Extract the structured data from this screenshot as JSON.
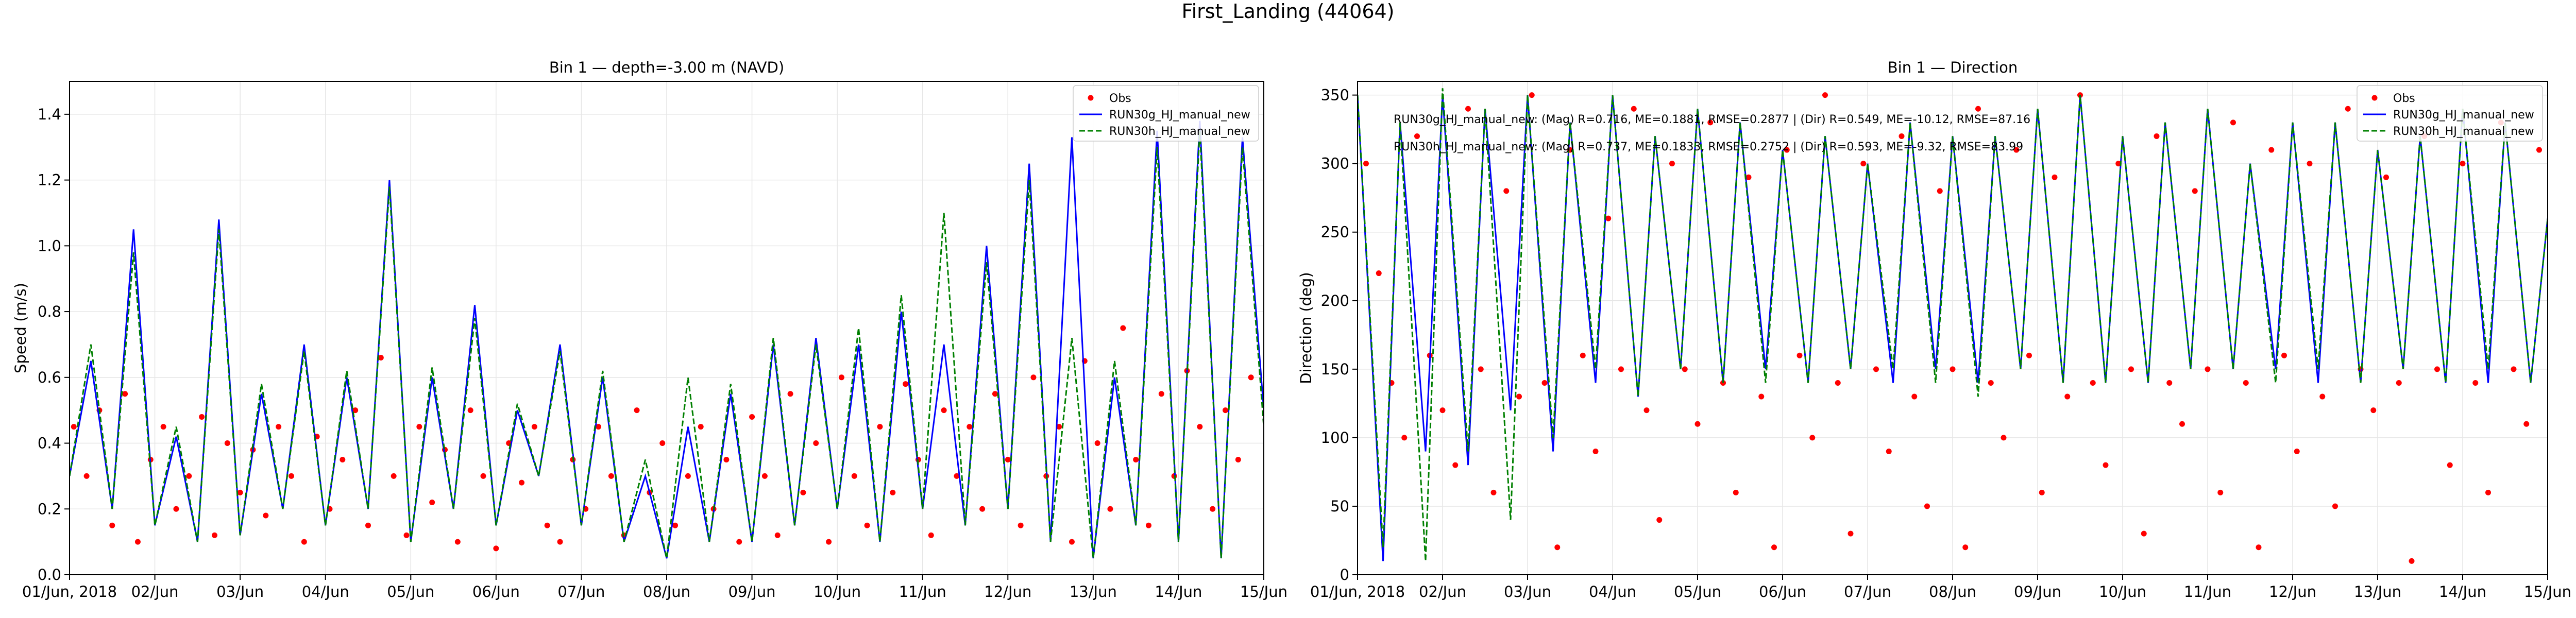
{
  "suptitle": "First_Landing (44064)",
  "chart_data": [
    {
      "type": "line",
      "title": "Bin 1 — depth=-3.00 m (NAVD)",
      "xlabel": "",
      "ylabel": "Speed (m/s)",
      "xlim": [
        0,
        14
      ],
      "ylim": [
        0,
        1.5
      ],
      "x_ticks": [
        0,
        1,
        2,
        3,
        4,
        5,
        6,
        7,
        8,
        9,
        10,
        11,
        12,
        13,
        14
      ],
      "x_tick_labels": [
        "01/Jun, 2018",
        "02/Jun",
        "03/Jun",
        "04/Jun",
        "05/Jun",
        "06/Jun",
        "07/Jun",
        "08/Jun",
        "09/Jun",
        "10/Jun",
        "11/Jun",
        "12/Jun",
        "13/Jun",
        "14/Jun",
        "15/Jun"
      ],
      "y_ticks": [
        0,
        0.2,
        0.4,
        0.6,
        0.8,
        1.0,
        1.2,
        1.4
      ],
      "y_tick_labels": [
        "0.0",
        "0.2",
        "0.4",
        "0.6",
        "0.8",
        "1.0",
        "1.2",
        "1.4"
      ],
      "grid": true,
      "legend_position": "upper right",
      "legend": [
        "Obs",
        "RUN30g_HJ_manual_new",
        "RUN30h_HJ_manual_new"
      ],
      "annotations": [],
      "series": [
        {
          "name": "Obs",
          "kind": "scatter",
          "color": "#ff0000",
          "x": [
            0.05,
            0.2,
            0.35,
            0.5,
            0.65,
            0.8,
            0.95,
            1.1,
            1.25,
            1.4,
            1.55,
            1.7,
            1.85,
            2.0,
            2.15,
            2.3,
            2.45,
            2.6,
            2.75,
            2.9,
            3.05,
            3.2,
            3.35,
            3.5,
            3.65,
            3.8,
            3.95,
            4.1,
            4.25,
            4.4,
            4.55,
            4.7,
            4.85,
            5.0,
            5.15,
            5.3,
            5.45,
            5.6,
            5.75,
            5.9,
            6.05,
            6.2,
            6.35,
            6.5,
            6.65,
            6.8,
            6.95,
            7.1,
            7.25,
            7.4,
            7.55,
            7.7,
            7.85,
            8.0,
            8.15,
            8.3,
            8.45,
            8.6,
            8.75,
            8.9,
            9.05,
            9.2,
            9.35,
            9.5,
            9.65,
            9.8,
            9.95,
            10.1,
            10.25,
            10.4,
            10.55,
            10.7,
            10.85,
            11.0,
            11.15,
            11.3,
            11.45,
            11.6,
            11.75,
            11.9,
            12.05,
            12.2,
            12.35,
            12.5,
            12.65,
            12.8,
            12.95,
            13.1,
            13.25,
            13.4,
            13.55,
            13.7,
            13.85
          ],
          "y": [
            0.45,
            0.3,
            0.5,
            0.15,
            0.55,
            0.1,
            0.35,
            0.45,
            0.2,
            0.3,
            0.48,
            0.12,
            0.4,
            0.25,
            0.38,
            0.18,
            0.45,
            0.3,
            0.1,
            0.42,
            0.2,
            0.35,
            0.5,
            0.15,
            0.66,
            0.3,
            0.12,
            0.45,
            0.22,
            0.38,
            0.1,
            0.5,
            0.3,
            0.08,
            0.4,
            0.28,
            0.45,
            0.15,
            0.1,
            0.35,
            0.2,
            0.45,
            0.3,
            0.12,
            0.5,
            0.25,
            0.4,
            0.15,
            0.3,
            0.45,
            0.2,
            0.35,
            0.1,
            0.48,
            0.3,
            0.12,
            0.55,
            0.25,
            0.4,
            0.1,
            0.6,
            0.3,
            0.15,
            0.45,
            0.25,
            0.58,
            0.35,
            0.12,
            0.5,
            0.3,
            0.45,
            0.2,
            0.55,
            0.35,
            0.15,
            0.6,
            0.3,
            0.45,
            0.1,
            0.65,
            0.4,
            0.2,
            0.75,
            0.35,
            0.15,
            0.55,
            0.3,
            0.62,
            0.45,
            0.2,
            0.5,
            0.35,
            0.6
          ]
        },
        {
          "name": "RUN30g_HJ_manual_new",
          "kind": "line",
          "color": "#0000ff",
          "dash": "solid",
          "x": [
            0,
            0.25,
            0.5,
            0.75,
            1.0,
            1.25,
            1.5,
            1.75,
            2.0,
            2.25,
            2.5,
            2.75,
            3.0,
            3.25,
            3.5,
            3.75,
            4.0,
            4.25,
            4.5,
            4.75,
            5.0,
            5.25,
            5.5,
            5.75,
            6.0,
            6.25,
            6.5,
            6.75,
            7.0,
            7.25,
            7.5,
            7.75,
            8.0,
            8.25,
            8.5,
            8.75,
            9.0,
            9.25,
            9.5,
            9.75,
            10.0,
            10.25,
            10.5,
            10.75,
            11.0,
            11.25,
            11.5,
            11.75,
            12.0,
            12.25,
            12.5,
            12.75,
            13.0,
            13.25,
            13.5,
            13.75,
            14.0
          ],
          "y": [
            0.3,
            0.65,
            0.2,
            1.05,
            0.15,
            0.42,
            0.1,
            1.08,
            0.12,
            0.55,
            0.2,
            0.7,
            0.15,
            0.6,
            0.2,
            1.2,
            0.1,
            0.6,
            0.2,
            0.82,
            0.15,
            0.5,
            0.3,
            0.7,
            0.15,
            0.6,
            0.1,
            0.3,
            0.05,
            0.45,
            0.1,
            0.55,
            0.1,
            0.7,
            0.15,
            0.72,
            0.2,
            0.7,
            0.1,
            0.8,
            0.2,
            0.7,
            0.15,
            1.0,
            0.2,
            1.25,
            0.1,
            1.33,
            0.05,
            0.6,
            0.15,
            1.35,
            0.1,
            1.38,
            0.05,
            1.33,
            0.5
          ]
        },
        {
          "name": "RUN30h_HJ_manual_new",
          "kind": "line",
          "color": "#008000",
          "dash": "dashed",
          "x": [
            0,
            0.25,
            0.5,
            0.75,
            1.0,
            1.25,
            1.5,
            1.75,
            2.0,
            2.25,
            2.5,
            2.75,
            3.0,
            3.25,
            3.5,
            3.75,
            4.0,
            4.25,
            4.5,
            4.75,
            5.0,
            5.25,
            5.5,
            5.75,
            6.0,
            6.25,
            6.5,
            6.75,
            7.0,
            7.25,
            7.5,
            7.75,
            8.0,
            8.25,
            8.5,
            8.75,
            9.0,
            9.25,
            9.5,
            9.75,
            10.0,
            10.25,
            10.5,
            10.75,
            11.0,
            11.25,
            11.5,
            11.75,
            12.0,
            12.25,
            12.5,
            12.75,
            13.0,
            13.25,
            13.5,
            13.75,
            14.0
          ],
          "y": [
            0.3,
            0.7,
            0.2,
            0.98,
            0.15,
            0.45,
            0.1,
            1.05,
            0.12,
            0.58,
            0.2,
            0.68,
            0.15,
            0.62,
            0.2,
            1.18,
            0.1,
            0.63,
            0.2,
            0.78,
            0.15,
            0.52,
            0.3,
            0.68,
            0.15,
            0.62,
            0.1,
            0.35,
            0.05,
            0.6,
            0.1,
            0.58,
            0.1,
            0.72,
            0.15,
            0.7,
            0.2,
            0.75,
            0.1,
            0.85,
            0.2,
            1.1,
            0.15,
            0.95,
            0.2,
            1.2,
            0.1,
            0.72,
            0.05,
            0.65,
            0.15,
            1.3,
            0.1,
            1.35,
            0.05,
            1.3,
            0.45
          ]
        }
      ]
    },
    {
      "type": "line",
      "title": "Bin 1 — Direction",
      "xlabel": "",
      "ylabel": "Direction (deg)",
      "xlim": [
        0,
        14
      ],
      "ylim": [
        0,
        360
      ],
      "x_ticks": [
        0,
        1,
        2,
        3,
        4,
        5,
        6,
        7,
        8,
        9,
        10,
        11,
        12,
        13,
        14
      ],
      "x_tick_labels": [
        "01/Jun, 2018",
        "02/Jun",
        "03/Jun",
        "04/Jun",
        "05/Jun",
        "06/Jun",
        "07/Jun",
        "08/Jun",
        "09/Jun",
        "10/Jun",
        "11/Jun",
        "12/Jun",
        "13/Jun",
        "14/Jun",
        "15/Jun"
      ],
      "y_ticks": [
        0,
        50,
        100,
        150,
        200,
        250,
        300,
        350
      ],
      "y_tick_labels": [
        "0",
        "50",
        "100",
        "150",
        "200",
        "250",
        "300",
        "350"
      ],
      "grid": true,
      "legend_position": "upper right",
      "legend": [
        "Obs",
        "RUN30g_HJ_manual_new",
        "RUN30h_HJ_manual_new"
      ],
      "annotations": [
        "RUN30g_HJ_manual_new: (Mag) R=0.716, ME=0.1881, RMSE=0.2877 | (Dir) R=0.549, ME=-10.12, RMSE=87.16",
        "RUN30h_HJ_manual_new: (Mag) R=0.737, ME=0.1833, RMSE=0.2752 | (Dir) R=0.593, ME=-9.32, RMSE=83.99"
      ],
      "series": [
        {
          "name": "Obs",
          "kind": "scatter",
          "color": "#ff0000",
          "x": [
            0.1,
            0.25,
            0.4,
            0.55,
            0.7,
            0.85,
            1.0,
            1.15,
            1.3,
            1.45,
            1.6,
            1.75,
            1.9,
            2.05,
            2.2,
            2.35,
            2.5,
            2.65,
            2.8,
            2.95,
            3.1,
            3.25,
            3.4,
            3.55,
            3.7,
            3.85,
            4.0,
            4.15,
            4.3,
            4.45,
            4.6,
            4.75,
            4.9,
            5.05,
            5.2,
            5.35,
            5.5,
            5.65,
            5.8,
            5.95,
            6.1,
            6.25,
            6.4,
            6.55,
            6.7,
            6.85,
            7.0,
            7.15,
            7.3,
            7.45,
            7.6,
            7.75,
            7.9,
            8.05,
            8.2,
            8.35,
            8.5,
            8.65,
            8.8,
            8.95,
            9.1,
            9.25,
            9.4,
            9.55,
            9.7,
            9.85,
            10.0,
            10.15,
            10.3,
            10.45,
            10.6,
            10.75,
            10.9,
            11.05,
            11.2,
            11.35,
            11.5,
            11.65,
            11.8,
            11.95,
            12.1,
            12.25,
            12.4,
            12.55,
            12.7,
            12.85,
            13.0,
            13.15,
            13.3,
            13.45,
            13.6,
            13.75,
            13.9
          ],
          "y": [
            300,
            220,
            140,
            100,
            320,
            160,
            120,
            80,
            340,
            150,
            60,
            280,
            130,
            350,
            140,
            20,
            310,
            160,
            90,
            260,
            150,
            340,
            120,
            40,
            300,
            150,
            110,
            330,
            140,
            60,
            290,
            130,
            20,
            310,
            160,
            100,
            350,
            140,
            30,
            300,
            150,
            90,
            320,
            130,
            50,
            280,
            150,
            20,
            340,
            140,
            100,
            310,
            160,
            60,
            290,
            130,
            350,
            140,
            80,
            300,
            150,
            30,
            320,
            140,
            110,
            280,
            150,
            60,
            330,
            140,
            20,
            310,
            160,
            90,
            300,
            130,
            50,
            340,
            150,
            120,
            290,
            140,
            10,
            320,
            150,
            80,
            300,
            140,
            60,
            330,
            150,
            110,
            310
          ]
        },
        {
          "name": "RUN30g_HJ_manual_new",
          "kind": "line",
          "color": "#0000ff",
          "dash": "solid",
          "x": [
            0,
            0.3,
            0.5,
            0.8,
            1.0,
            1.3,
            1.5,
            1.8,
            2.0,
            2.3,
            2.5,
            2.8,
            3.0,
            3.3,
            3.5,
            3.8,
            4.0,
            4.3,
            4.5,
            4.8,
            5.0,
            5.3,
            5.5,
            5.8,
            6.0,
            6.3,
            6.5,
            6.8,
            7.0,
            7.3,
            7.5,
            7.8,
            8.0,
            8.3,
            8.5,
            8.8,
            9.0,
            9.3,
            9.5,
            9.8,
            10.0,
            10.3,
            10.5,
            10.8,
            11.0,
            11.3,
            11.5,
            11.8,
            12.0,
            12.3,
            12.5,
            12.8,
            13.0,
            13.3,
            13.5,
            13.8,
            14.0
          ],
          "y": [
            350,
            10,
            330,
            90,
            350,
            80,
            340,
            120,
            350,
            90,
            330,
            140,
            350,
            130,
            320,
            150,
            340,
            140,
            330,
            150,
            310,
            140,
            320,
            150,
            300,
            140,
            330,
            150,
            320,
            140,
            320,
            150,
            340,
            140,
            350,
            140,
            320,
            140,
            330,
            150,
            340,
            150,
            300,
            150,
            330,
            140,
            330,
            140,
            310,
            150,
            320,
            140,
            340,
            140,
            330,
            140,
            260
          ]
        },
        {
          "name": "RUN30h_HJ_manual_new",
          "kind": "line",
          "color": "#008000",
          "dash": "dashed",
          "x": [
            0,
            0.3,
            0.5,
            0.8,
            1.0,
            1.3,
            1.5,
            1.8,
            2.0,
            2.3,
            2.5,
            2.8,
            3.0,
            3.3,
            3.5,
            3.8,
            4.0,
            4.3,
            4.5,
            4.8,
            5.0,
            5.3,
            5.5,
            5.8,
            6.0,
            6.3,
            6.5,
            6.8,
            7.0,
            7.3,
            7.5,
            7.8,
            8.0,
            8.3,
            8.5,
            8.8,
            9.0,
            9.3,
            9.5,
            9.8,
            10.0,
            10.3,
            10.5,
            10.8,
            11.0,
            11.3,
            11.5,
            11.8,
            12.0,
            12.3,
            12.5,
            12.8,
            13.0,
            13.3,
            13.5,
            13.8,
            14.0
          ],
          "y": [
            350,
            20,
            330,
            10,
            355,
            90,
            340,
            40,
            350,
            100,
            330,
            150,
            350,
            130,
            320,
            150,
            340,
            140,
            330,
            140,
            310,
            140,
            320,
            150,
            300,
            150,
            330,
            140,
            320,
            130,
            320,
            150,
            340,
            140,
            350,
            140,
            320,
            140,
            330,
            150,
            340,
            150,
            300,
            140,
            330,
            150,
            330,
            140,
            310,
            150,
            320,
            140,
            340,
            150,
            330,
            140,
            260
          ]
        }
      ]
    }
  ]
}
